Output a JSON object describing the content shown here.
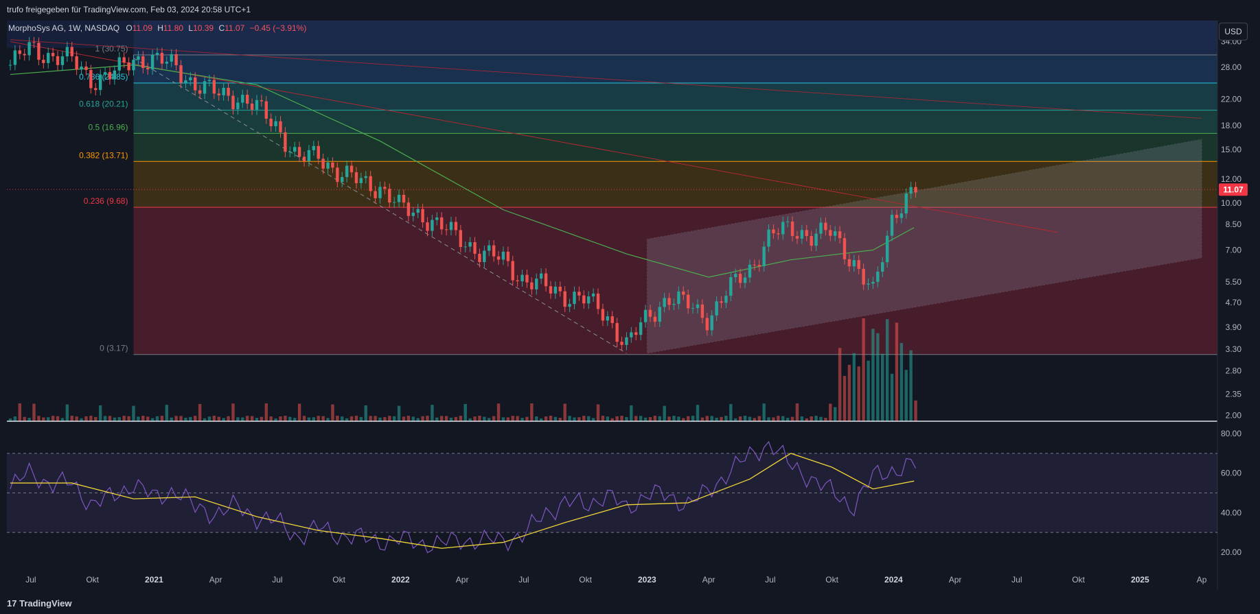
{
  "header": {
    "share_text": "trufo freigegeben für TradingView.com, Feb 03, 2024 20:58 UTC+1",
    "symbol_text": "MorphoSys AG, 1W, NASDAQ",
    "o_label": "O",
    "o_value": "11.09",
    "h_label": "H",
    "h_value": "11.80",
    "l_label": "L",
    "l_value": "10.39",
    "c_label": "C",
    "c_value": "11.07",
    "change": "−0.45 (−3.91%)",
    "currency": "USD"
  },
  "footer": {
    "logo_text": "TradingView"
  },
  "colors": {
    "background": "#131722",
    "up": "#26a69a",
    "down": "#ef5350",
    "ma": "#4caf50",
    "rsi": "#7e57c2",
    "rsi_ma": "#f0d43a",
    "downtrend": "#b22833",
    "price_badge": "#f23645"
  },
  "chart_data": {
    "type": "candlestick",
    "price_scale": "log",
    "y_ticks": [
      "34.00",
      "28.00",
      "22.00",
      "18.00",
      "15.00",
      "12.00",
      "10.00",
      "8.50",
      "7.00",
      "5.50",
      "4.70",
      "3.90",
      "3.30",
      "2.80",
      "2.35",
      "2.00"
    ],
    "x_ticks": [
      "Jul",
      "Okt",
      "2021",
      "Apr",
      "Jul",
      "Okt",
      "2022",
      "Apr",
      "Jul",
      "Okt",
      "2023",
      "Apr",
      "Jul",
      "Okt",
      "2024",
      "Apr",
      "Jul",
      "Okt",
      "2025",
      "Ap"
    ],
    "last_price": "11.07",
    "fib_levels": [
      {
        "label": "1 (30.75)",
        "price": 30.75,
        "color": "#787b86"
      },
      {
        "label": "0.786 (24.85)",
        "price": 24.85,
        "color": "#26c6da"
      },
      {
        "label": "0.618 (20.21)",
        "price": 20.21,
        "color": "#26a69a"
      },
      {
        "label": "0.5 (16.96)",
        "price": 16.96,
        "color": "#4caf50"
      },
      {
        "label": "0.382 (13.71)",
        "price": 13.71,
        "color": "#ff9800"
      },
      {
        "label": "0.236 (9.68)",
        "price": 9.68,
        "color": "#f23645"
      },
      {
        "label": "0 (3.17)",
        "price": 3.17,
        "color": "#787b86"
      }
    ],
    "fib_start_date": "2020-12",
    "fib_zone_colors": [
      "#1e3a5f",
      "#1a4a52",
      "#1c4a46",
      "#1d4030",
      "#4a3a14",
      "#5a2030",
      "#4a1c28"
    ],
    "price_path": [
      [
        "2020-06",
        28.5
      ],
      [
        "2020-07",
        32.5
      ],
      [
        "2020-08",
        30.5
      ],
      [
        "2020-09",
        29.5
      ],
      [
        "2020-10",
        25.5
      ],
      [
        "2020-11",
        26.5
      ],
      [
        "2020-12",
        30.0
      ],
      [
        "2021-01",
        29.5
      ],
      [
        "2021-02",
        28.5
      ],
      [
        "2021-03",
        24.5
      ],
      [
        "2021-04",
        23.0
      ],
      [
        "2021-05",
        22.5
      ],
      [
        "2021-06",
        20.5
      ],
      [
        "2021-07",
        18.0
      ],
      [
        "2021-08",
        13.8
      ],
      [
        "2021-09",
        14.5
      ],
      [
        "2021-10",
        12.5
      ],
      [
        "2021-11",
        11.8
      ],
      [
        "2021-12",
        11.3
      ],
      [
        "2022-01",
        9.6
      ],
      [
        "2022-02",
        9.2
      ],
      [
        "2022-03",
        8.3
      ],
      [
        "2022-04",
        7.6
      ],
      [
        "2022-05",
        6.8
      ],
      [
        "2022-06",
        6.5
      ],
      [
        "2022-07",
        5.6
      ],
      [
        "2022-08",
        5.3
      ],
      [
        "2022-09",
        5.0
      ],
      [
        "2022-10",
        4.8
      ],
      [
        "2022-11",
        4.3
      ],
      [
        "2022-12",
        3.4
      ],
      [
        "2023-01",
        4.2
      ],
      [
        "2023-02",
        4.9
      ],
      [
        "2023-03",
        4.6
      ],
      [
        "2023-04",
        4.2
      ],
      [
        "2023-05",
        5.2
      ],
      [
        "2023-06",
        6.1
      ],
      [
        "2023-07",
        7.8
      ],
      [
        "2023-08",
        8.3
      ],
      [
        "2023-09",
        7.8
      ],
      [
        "2023-10",
        8.0
      ],
      [
        "2023-11",
        6.5
      ],
      [
        "2023-12",
        5.0
      ],
      [
        "2024-01",
        9.4
      ],
      [
        "2024-02",
        11.07
      ]
    ],
    "ma_path": [
      [
        "2020-06",
        26.5
      ],
      [
        "2020-12",
        28.5
      ],
      [
        "2021-06",
        24.5
      ],
      [
        "2021-12",
        16.0
      ],
      [
        "2022-06",
        9.5
      ],
      [
        "2022-12",
        6.8
      ],
      [
        "2023-04",
        5.7
      ],
      [
        "2023-08",
        6.5
      ],
      [
        "2023-12",
        7.0
      ],
      [
        "2024-02",
        8.3
      ]
    ],
    "downtrend_line": [
      [
        "2020-06",
        34.0
      ],
      [
        "2024-09",
        8.0
      ]
    ],
    "upper_trend_line": [
      [
        "2020-06",
        34.5
      ],
      [
        "2025-04",
        19.0
      ]
    ],
    "dashed_trend": [
      [
        "2020-12",
        30.0
      ],
      [
        "2022-12",
        3.2
      ]
    ],
    "channel": {
      "start": "2023-01",
      "end": "2025-04",
      "upper": [
        7.6,
        16.2
      ],
      "lower": [
        3.2,
        6.6
      ]
    },
    "rsi": {
      "ticks": [
        "80.00",
        "60.00",
        "40.00",
        "20.00"
      ],
      "levels": [
        70,
        50,
        30
      ],
      "path": [
        [
          "2020-06",
          52
        ],
        [
          "2020-07",
          61
        ],
        [
          "2020-08",
          54
        ],
        [
          "2020-09",
          55
        ],
        [
          "2020-10",
          44
        ],
        [
          "2020-11",
          48
        ],
        [
          "2020-12",
          55
        ],
        [
          "2021-01",
          47
        ],
        [
          "2021-02",
          52
        ],
        [
          "2021-03",
          42
        ],
        [
          "2021-04",
          40
        ],
        [
          "2021-05",
          43
        ],
        [
          "2021-06",
          38
        ],
        [
          "2021-07",
          35
        ],
        [
          "2021-08",
          28
        ],
        [
          "2021-09",
          32
        ],
        [
          "2021-10",
          29
        ],
        [
          "2021-11",
          27
        ],
        [
          "2021-12",
          26
        ],
        [
          "2022-01",
          26
        ],
        [
          "2022-02",
          25
        ],
        [
          "2022-03",
          24
        ],
        [
          "2022-04",
          27
        ],
        [
          "2022-05",
          25
        ],
        [
          "2022-06",
          27
        ],
        [
          "2022-07",
          28
        ],
        [
          "2022-08",
          40
        ],
        [
          "2022-09",
          45
        ],
        [
          "2022-10",
          44
        ],
        [
          "2022-11",
          49
        ],
        [
          "2022-12",
          42
        ],
        [
          "2023-01",
          50
        ],
        [
          "2023-02",
          48
        ],
        [
          "2023-03",
          45
        ],
        [
          "2023-04",
          50
        ],
        [
          "2023-05",
          62
        ],
        [
          "2023-06",
          68
        ],
        [
          "2023-07",
          76
        ],
        [
          "2023-08",
          63
        ],
        [
          "2023-09",
          58
        ],
        [
          "2023-10",
          50
        ],
        [
          "2023-11",
          43
        ],
        [
          "2023-12",
          58
        ],
        [
          "2024-01",
          62
        ],
        [
          "2024-02",
          64
        ]
      ],
      "ma_path": [
        [
          "2020-06",
          55
        ],
        [
          "2020-09",
          55
        ],
        [
          "2020-12",
          47
        ],
        [
          "2021-03",
          48
        ],
        [
          "2021-06",
          38
        ],
        [
          "2021-09",
          31
        ],
        [
          "2021-12",
          27
        ],
        [
          "2022-03",
          22
        ],
        [
          "2022-06",
          25
        ],
        [
          "2022-09",
          35
        ],
        [
          "2022-12",
          44
        ],
        [
          "2023-03",
          45
        ],
        [
          "2023-06",
          57
        ],
        [
          "2023-08",
          70
        ],
        [
          "2023-10",
          63
        ],
        [
          "2023-12",
          52
        ],
        [
          "2024-02",
          56
        ]
      ]
    }
  }
}
